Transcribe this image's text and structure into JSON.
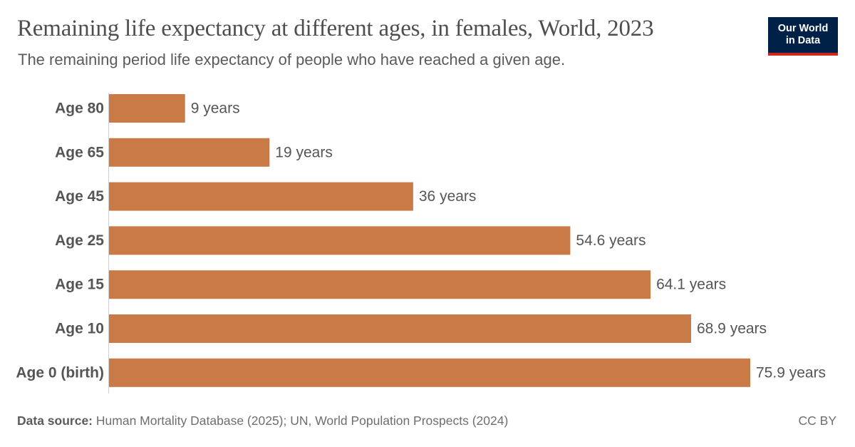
{
  "header": {
    "title": "Remaining life expectancy at different ages, in females, World, 2023",
    "subtitle": "The remaining period life expectancy of people who have reached a given age."
  },
  "logo": {
    "line1": "Our World",
    "line2": "in Data",
    "background_color": "#002147",
    "accent_color": "#ce261e"
  },
  "chart_data": {
    "type": "bar",
    "orientation": "horizontal",
    "categories": [
      "Age 80",
      "Age 65",
      "Age 45",
      "Age 25",
      "Age 15",
      "Age 10",
      "Age 0 (birth)"
    ],
    "values": [
      9,
      19,
      36,
      54.6,
      64.1,
      68.9,
      75.9
    ],
    "value_labels": [
      "9 years",
      "19 years",
      "36 years",
      "54.6 years",
      "64.1 years",
      "68.9 years",
      "75.9 years"
    ],
    "bar_color": "#c97a46",
    "xlim": [
      0,
      75.9
    ],
    "grid": false
  },
  "footer": {
    "source_label": "Data source:",
    "source_text": "Human Mortality Database (2025); UN, World Population Prospects (2024)",
    "license": "CC BY"
  }
}
